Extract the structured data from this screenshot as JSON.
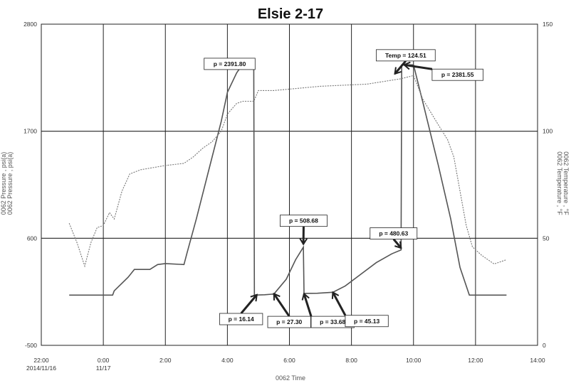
{
  "chart_data": {
    "type": "line",
    "title": "Elsie 2-17",
    "xlabel": "0062 Time",
    "ylabel_left": [
      "0062 Pressure , psi(a)",
      "0062 Pressure , psi(a)"
    ],
    "ylabel_right": [
      "0062 Temperature , °F",
      "0062 Temperature , °F"
    ],
    "x_range_hours": [
      -2,
      14
    ],
    "x_ticks": [
      {
        "x": -2,
        "label": "22:00",
        "sub": "2014/11/16"
      },
      {
        "x": 0,
        "label": "0:00",
        "sub": "11/17"
      },
      {
        "x": 2,
        "label": "2:00",
        "sub": ""
      },
      {
        "x": 4,
        "label": "4:00",
        "sub": ""
      },
      {
        "x": 6,
        "label": "6:00",
        "sub": ""
      },
      {
        "x": 8,
        "label": "8:00",
        "sub": ""
      },
      {
        "x": 10,
        "label": "10:00",
        "sub": ""
      },
      {
        "x": 12,
        "label": "12:00",
        "sub": ""
      },
      {
        "x": 14,
        "label": "14:00",
        "sub": ""
      }
    ],
    "y_left_range": [
      -500,
      2800
    ],
    "y_left_ticks": [
      2800,
      1700,
      600,
      -500
    ],
    "y_right_range": [
      0,
      150
    ],
    "y_right_ticks": [
      150,
      100,
      50,
      0
    ],
    "grid": true,
    "series": [
      {
        "axis": "left",
        "color": "#555555",
        "style": "solid",
        "points": [
          [
            -1.1,
            16
          ],
          [
            0.3,
            16
          ],
          [
            0.35,
            60
          ],
          [
            0.8,
            200
          ],
          [
            1,
            280
          ],
          [
            1.5,
            280
          ],
          [
            1.7,
            320
          ],
          [
            1.75,
            330
          ],
          [
            2.0,
            340
          ],
          [
            2.6,
            330
          ],
          [
            2.7,
            450
          ],
          [
            3.0,
            800
          ],
          [
            3.4,
            1300
          ],
          [
            3.8,
            1800
          ],
          [
            4.0,
            2100
          ],
          [
            4.3,
            2300
          ],
          [
            4.5,
            2391.8
          ],
          [
            4.85,
            2391.8
          ],
          [
            4.87,
            16.14
          ],
          [
            5.2,
            20
          ],
          [
            5.5,
            27.3
          ],
          [
            5.9,
            180
          ],
          [
            6.2,
            380
          ],
          [
            6.45,
            508.68
          ],
          [
            6.47,
            33.68
          ],
          [
            6.9,
            35
          ],
          [
            7.4,
            45.13
          ],
          [
            7.8,
            110
          ],
          [
            8.3,
            230
          ],
          [
            8.8,
            350
          ],
          [
            9.3,
            440
          ],
          [
            9.6,
            480.63
          ],
          [
            9.62,
            2381.55
          ],
          [
            10.0,
            2381.55
          ],
          [
            10.3,
            2000
          ],
          [
            10.8,
            1350
          ],
          [
            11.2,
            800
          ],
          [
            11.5,
            300
          ],
          [
            11.8,
            16
          ],
          [
            13.0,
            16
          ]
        ]
      },
      {
        "axis": "right",
        "color": "#777777",
        "style": "dashed",
        "points": [
          [
            -1.1,
            57
          ],
          [
            -0.85,
            48
          ],
          [
            -0.6,
            37
          ],
          [
            -0.4,
            48
          ],
          [
            -0.2,
            55
          ],
          [
            0,
            56
          ],
          [
            0.2,
            62
          ],
          [
            0.35,
            59
          ],
          [
            0.6,
            72
          ],
          [
            0.85,
            80
          ],
          [
            1.2,
            82
          ],
          [
            2.0,
            84
          ],
          [
            2.6,
            85
          ],
          [
            2.9,
            88
          ],
          [
            3.2,
            92
          ],
          [
            3.5,
            95
          ],
          [
            3.8,
            100
          ],
          [
            4.0,
            108
          ],
          [
            4.3,
            113
          ],
          [
            4.5,
            114
          ],
          [
            4.85,
            114
          ],
          [
            5.0,
            119
          ],
          [
            5.5,
            119
          ],
          [
            7.0,
            121
          ],
          [
            8.5,
            122
          ],
          [
            9.6,
            124.51
          ],
          [
            10.0,
            126
          ],
          [
            10.3,
            115
          ],
          [
            10.8,
            103
          ],
          [
            11.1,
            96
          ],
          [
            11.3,
            88
          ],
          [
            11.5,
            72
          ],
          [
            11.7,
            56
          ],
          [
            11.9,
            46
          ],
          [
            12.2,
            42
          ],
          [
            12.6,
            38
          ],
          [
            13.0,
            40
          ]
        ]
      }
    ],
    "annotations": [
      {
        "label": "p = 2391.80",
        "box_x": 3.25,
        "box_y": 2391.8,
        "arrow_tip": [
          4.85,
          2391.8
        ]
      },
      {
        "label": "Temp = 124.51",
        "box_x": 8.8,
        "box_y": 2480,
        "arrow_tip": [
          9.4,
          2290
        ]
      },
      {
        "label": "p = 2381.55",
        "box_x": 10.6,
        "box_y": 2280,
        "arrow_tip": [
          9.7,
          2381.55
        ]
      },
      {
        "label": "p = 508.68",
        "box_x": 5.7,
        "box_y": 780,
        "arrow_tip": [
          6.45,
          540
        ]
      },
      {
        "label": "p = 480.63",
        "box_x": 8.6,
        "box_y": 650,
        "arrow_tip": [
          9.6,
          500
        ]
      },
      {
        "label": "p = 16.14",
        "box_x": 3.75,
        "box_y": -230,
        "arrow_tip": [
          4.95,
          20
        ]
      },
      {
        "label": "p = 27.30",
        "box_x": 5.3,
        "box_y": -260,
        "arrow_tip": [
          5.5,
          30
        ]
      },
      {
        "label": "p = 33.68",
        "box_x": 6.7,
        "box_y": -260,
        "arrow_tip": [
          6.47,
          30
        ]
      },
      {
        "label": "p = 45.13",
        "box_x": 7.8,
        "box_y": -250,
        "arrow_tip": [
          7.4,
          45
        ]
      }
    ]
  }
}
